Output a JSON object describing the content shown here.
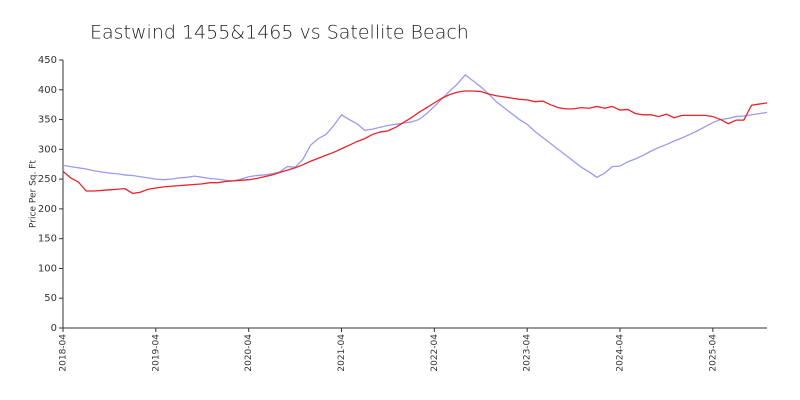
{
  "chart_data": {
    "type": "line",
    "title": "Eastwind 1455&1465 vs Satellite Beach",
    "ylabel": "Price Per Sq. Ft",
    "x": [
      "2018-04",
      "2018-05",
      "2018-06",
      "2018-07",
      "2018-08",
      "2018-09",
      "2018-10",
      "2018-11",
      "2018-12",
      "2019-01",
      "2019-02",
      "2019-03",
      "2019-04",
      "2019-05",
      "2019-06",
      "2019-07",
      "2019-08",
      "2019-09",
      "2019-10",
      "2019-11",
      "2019-12",
      "2020-01",
      "2020-02",
      "2020-03",
      "2020-04",
      "2020-05",
      "2020-06",
      "2020-07",
      "2020-08",
      "2020-09",
      "2020-10",
      "2020-11",
      "2020-12",
      "2021-01",
      "2021-02",
      "2021-03",
      "2021-04",
      "2021-05",
      "2021-06",
      "2021-07",
      "2021-08",
      "2021-09",
      "2021-10",
      "2021-11",
      "2021-12",
      "2022-01",
      "2022-02",
      "2022-03",
      "2022-04",
      "2022-05",
      "2022-06",
      "2022-07",
      "2022-08",
      "2022-09",
      "2022-10",
      "2022-11",
      "2022-12",
      "2023-01",
      "2023-02",
      "2023-03",
      "2023-04",
      "2023-05",
      "2023-06",
      "2023-07",
      "2023-08",
      "2023-09",
      "2023-10",
      "2023-11",
      "2023-12",
      "2024-01",
      "2024-02",
      "2024-03",
      "2024-04",
      "2024-05",
      "2024-06",
      "2024-07",
      "2024-08",
      "2024-09",
      "2024-10",
      "2024-11",
      "2024-12",
      "2025-01",
      "2025-02",
      "2025-03",
      "2025-04",
      "2025-05",
      "2025-06",
      "2025-07",
      "2025-08",
      "2025-09",
      "2025-10",
      "2025-11"
    ],
    "xlim": [
      "2018-04",
      "2025-11"
    ],
    "xticks": [
      "2018-04",
      "2019-04",
      "2020-04",
      "2021-04",
      "2022-04",
      "2023-04",
      "2024-04",
      "2025-04"
    ],
    "ylim": [
      0,
      450
    ],
    "yticks": [
      0,
      50,
      100,
      150,
      200,
      250,
      300,
      350,
      400,
      450
    ],
    "series": [
      {
        "color": "#9b9bf0",
        "values": [
          273,
          271,
          269,
          267,
          264,
          262,
          260,
          259,
          257,
          256,
          254,
          252,
          250,
          249,
          250,
          252,
          253,
          255,
          253,
          251,
          250,
          248,
          247,
          250,
          254,
          256,
          257,
          259,
          262,
          271,
          270,
          283,
          307,
          318,
          325,
          340,
          358,
          350,
          343,
          332,
          334,
          337,
          340,
          342,
          344,
          346,
          350,
          360,
          372,
          385,
          398,
          410,
          425,
          415,
          405,
          393,
          380,
          370,
          360,
          350,
          342,
          330,
          320,
          310,
          300,
          290,
          280,
          270,
          262,
          253,
          260,
          271,
          272,
          279,
          284,
          290,
          297,
          303,
          308,
          314,
          319,
          325,
          331,
          338,
          345,
          350,
          352,
          355,
          356,
          358,
          360,
          362
        ]
      },
      {
        "color": "#e8232b",
        "values": [
          263,
          252,
          245,
          230,
          230,
          231,
          232,
          233,
          234,
          226,
          228,
          233,
          235,
          237,
          238,
          239,
          240,
          241,
          242,
          244,
          244,
          246,
          247,
          248,
          249,
          251,
          254,
          257,
          261,
          265,
          269,
          274,
          280,
          285,
          290,
          295,
          301,
          307,
          313,
          318,
          325,
          329,
          331,
          337,
          345,
          353,
          362,
          370,
          378,
          386,
          392,
          396,
          398,
          398,
          397,
          393,
          390,
          388,
          386,
          384,
          383,
          380,
          381,
          375,
          370,
          368,
          368,
          370,
          369,
          372,
          369,
          372,
          366,
          367,
          360,
          358,
          358,
          355,
          359,
          353,
          357,
          357,
          357,
          357,
          355,
          350,
          343,
          349,
          349,
          374,
          376,
          378
        ]
      }
    ]
  }
}
